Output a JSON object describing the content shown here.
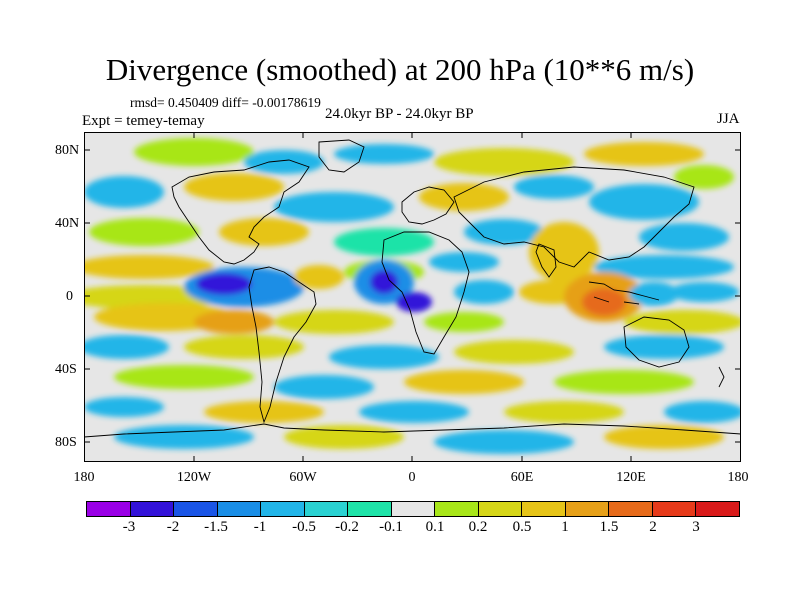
{
  "title": "Divergence (smoothed) at 200 hPa (10**6 m/s)",
  "stats": "rmsd= 0.450409 diff= -0.00178619",
  "expt": "Expt = temey-temay",
  "period": "24.0kyr BP - 24.0kyr BP",
  "season": "JJA",
  "lat_labels": [
    "80N",
    "40N",
    "0",
    "40S",
    "80S"
  ],
  "lon_labels": [
    "180",
    "120W",
    "60W",
    "0",
    "60E",
    "120E",
    "180"
  ],
  "colorbar": {
    "labels": [
      "-3",
      "-2",
      "-1.5",
      "-1",
      "-0.5",
      "-0.2",
      "-0.1",
      "0.1",
      "0.2",
      "0.5",
      "1",
      "1.5",
      "2",
      "3"
    ],
    "colors": [
      "#9a00e6",
      "#3312d9",
      "#1a55e6",
      "#1a8ee6",
      "#22b5e8",
      "#2ad2d2",
      "#1ee3a8",
      "#e6e6e6",
      "#a8e619",
      "#d6d619",
      "#e6c419",
      "#e6a019",
      "#e66a1a",
      "#e63a1a",
      "#d91a1a"
    ]
  },
  "map_colors": {
    "background": "#e6e6e6",
    "coast": "#000000"
  }
}
